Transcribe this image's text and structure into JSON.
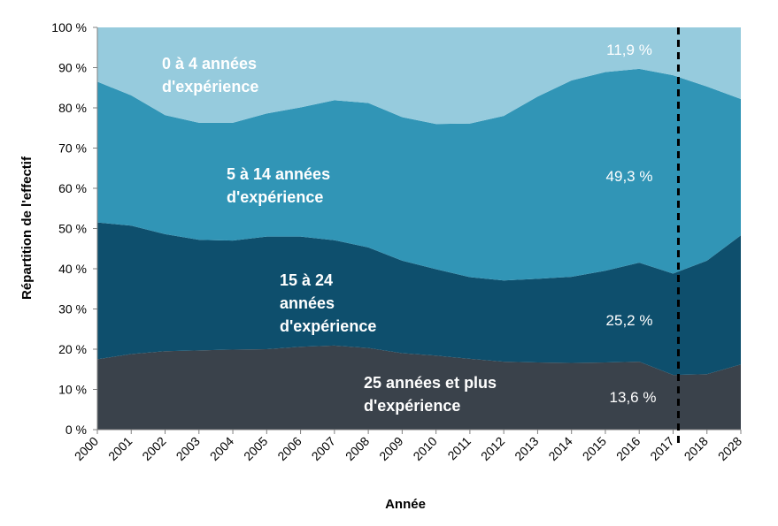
{
  "chart_data": {
    "type": "area",
    "stacked": true,
    "normalized": true,
    "xlabel": "Année",
    "ylabel": "Répartition de l'effectif",
    "ylim": [
      0,
      100
    ],
    "yticks": [
      "0 %",
      "10 %",
      "20 %",
      "30 %",
      "40 %",
      "50 %",
      "60 %",
      "70 %",
      "80 %",
      "90 %",
      "100 %"
    ],
    "categories": [
      "2000",
      "2001",
      "2002",
      "2003",
      "2004",
      "2005",
      "2006",
      "2007",
      "2008",
      "2009",
      "2010",
      "2011",
      "2012",
      "2013",
      "2014",
      "2015",
      "2016",
      "2017",
      "2018",
      "2028"
    ],
    "divider_after": "2017",
    "series": [
      {
        "name": "25 années et plus d'expérience",
        "label_lines": [
          "25 années et plus",
          "d'expérience"
        ],
        "color": "#3a424b",
        "values": [
          17.5,
          18.8,
          19.5,
          19.7,
          19.9,
          20.0,
          20.6,
          20.9,
          20.3,
          19.0,
          18.4,
          17.6,
          16.9,
          16.7,
          16.6,
          16.7,
          16.9,
          13.6,
          13.8,
          16.2
        ],
        "data_label": "13,6 %"
      },
      {
        "name": "15 à 24 années d'expérience",
        "label_lines": [
          "15 à 24",
          "années",
          "d'expérience"
        ],
        "color": "#0e4f6d",
        "values": [
          34.0,
          31.9,
          29.1,
          27.5,
          27.1,
          28.0,
          27.4,
          26.2,
          25.0,
          23.0,
          21.5,
          20.3,
          20.2,
          20.8,
          21.4,
          22.8,
          24.6,
          25.2,
          28.2,
          32.1
        ],
        "data_label": "25,2 %"
      },
      {
        "name": "5 à 14 années d'expérience",
        "label_lines": [
          "5 à 14 années",
          "d'expérience"
        ],
        "color": "#3195b6",
        "values": [
          35.0,
          32.4,
          29.6,
          29.1,
          29.3,
          30.6,
          32.1,
          34.8,
          35.9,
          35.7,
          36.1,
          38.2,
          40.9,
          45.3,
          48.8,
          49.4,
          48.2,
          49.3,
          43.3,
          33.9
        ],
        "data_label": "49,3 %"
      },
      {
        "name": "0 à 4 années d'expérience",
        "label_lines": [
          "0 à 4 années",
          "d'expérience"
        ],
        "color": "#96cbdd",
        "values": [
          13.5,
          16.9,
          21.8,
          23.7,
          23.7,
          21.4,
          19.9,
          18.1,
          18.8,
          22.3,
          24.0,
          23.9,
          22.0,
          17.2,
          13.2,
          11.1,
          10.3,
          11.9,
          14.7,
          17.8
        ],
        "data_label": "11,9 %"
      }
    ]
  }
}
